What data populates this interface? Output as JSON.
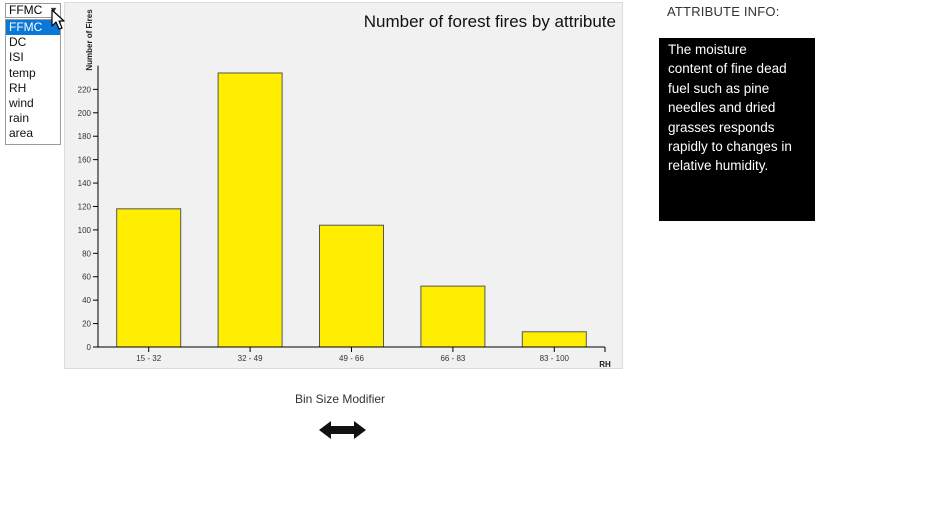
{
  "dropdown": {
    "selected": "FFMC",
    "options": [
      "FFMC",
      "DC",
      "ISI",
      "temp",
      "RH",
      "wind",
      "rain",
      "area"
    ],
    "highlighted_index": 0
  },
  "chart_data": {
    "type": "bar",
    "title": "Number of forest fires by attribute",
    "xlabel": "RH",
    "ylabel": "Number of Fires",
    "categories": [
      "15 - 32",
      "32 - 49",
      "49 - 66",
      "66 - 83",
      "83 - 100"
    ],
    "values": [
      118,
      234,
      104,
      52,
      13
    ],
    "ylim": [
      0,
      230
    ],
    "yticks": [
      0,
      20,
      40,
      60,
      80,
      100,
      120,
      140,
      160,
      180,
      200,
      220
    ],
    "bar_color": "#ffee00",
    "grid": false
  },
  "info": {
    "title": "ATTRIBUTE INFO:",
    "lines": [
      "The moisture",
      "content of fine dead",
      "fuel such as pine",
      "needles and dried",
      "grasses responds",
      "rapidly to changes in",
      "relative humidity."
    ]
  },
  "bin_modifier": {
    "label": "Bin Size Modifier",
    "icon": "double-arrow-icon"
  }
}
